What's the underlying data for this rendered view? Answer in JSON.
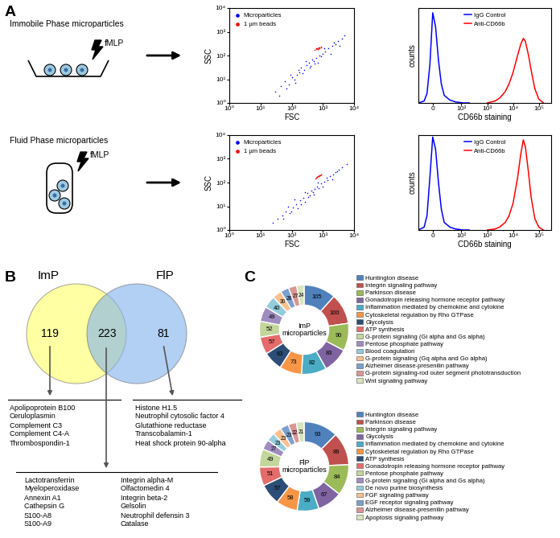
{
  "panel_labels": [
    "A",
    "B",
    "C"
  ],
  "schematic": {
    "rows": [
      {
        "title": "Immobile Phase microparticles",
        "stimulus": "fMLP"
      },
      {
        "title": "Fluid Phase microparticles",
        "stimulus": "fMLP"
      }
    ]
  },
  "chart_data": [
    {
      "type": "scatter",
      "x_label": "FSC",
      "y_label": "SSC",
      "log": true,
      "xlim": [
        1,
        10000
      ],
      "ylim": [
        1,
        10000
      ],
      "xticks": [
        {
          "value": 1,
          "label": "10⁰"
        },
        {
          "value": 10,
          "label": "10¹"
        },
        {
          "value": 100,
          "label": "10²"
        },
        {
          "value": 1000,
          "label": "10³"
        },
        {
          "value": 10000,
          "label": "10⁴"
        }
      ],
      "yticks": [
        {
          "value": 1,
          "label": "10⁰"
        },
        {
          "value": 10,
          "label": "10¹"
        },
        {
          "value": 100,
          "label": "10²"
        },
        {
          "value": 1000,
          "label": "10³"
        },
        {
          "value": 10000,
          "label": "10⁴"
        }
      ],
      "legend": "upper left",
      "series": [
        {
          "name": "Microparticles",
          "color": "#0000ff",
          "marker": "point",
          "x": [
            30,
            45,
            60,
            80,
            100,
            120,
            150,
            180,
            200,
            250,
            300,
            350,
            400,
            500,
            600,
            700,
            800,
            1000,
            1200,
            1500,
            2000,
            2500,
            3000,
            4000,
            5000,
            40,
            70,
            90,
            130,
            170,
            220,
            280,
            380,
            450,
            550,
            900,
            1100,
            1800,
            2200,
            3500
          ],
          "values": [
            3,
            5,
            8,
            6,
            12,
            10,
            15,
            20,
            30,
            25,
            40,
            50,
            35,
            60,
            80,
            50,
            100,
            120,
            150,
            200,
            250,
            300,
            400,
            500,
            700,
            2,
            4,
            15,
            7,
            25,
            18,
            60,
            30,
            70,
            45,
            90,
            200,
            120,
            350,
            250
          ]
        },
        {
          "name": "1 µm beads",
          "color": "#ff0000",
          "marker": "point",
          "x": [
            550,
            600,
            650,
            700,
            720,
            750,
            800,
            850,
            900,
            620,
            680,
            780
          ],
          "values": [
            170,
            180,
            200,
            190,
            210,
            200,
            220,
            230,
            215,
            195,
            185,
            205
          ]
        }
      ]
    },
    {
      "type": "line",
      "x_label": "CD66b staining",
      "y_label": "counts",
      "log": "x",
      "xlim": [
        -50,
        300000
      ],
      "ylim": [
        0,
        100
      ],
      "xticks": [
        0,
        {
          "value": 100,
          "label": "10²"
        },
        {
          "value": 1000,
          "label": "10³"
        },
        {
          "value": 10000,
          "label": "10⁴"
        },
        {
          "value": 100000,
          "label": "10⁵"
        }
      ],
      "tick_labels": "x",
      "legend": "upper center",
      "series": [
        {
          "name": "IgG Control",
          "color": "#0000ff",
          "x": [
            -50,
            -30,
            -20,
            -10,
            0,
            10,
            20,
            30,
            40,
            60,
            80,
            120,
            200
          ],
          "values": [
            0,
            2,
            10,
            40,
            95,
            80,
            45,
            20,
            8,
            3,
            1,
            0,
            0
          ]
        },
        {
          "name": "Anti-CD66b",
          "color": "#ff0000",
          "x": [
            1000,
            2000,
            3000,
            5000,
            7000,
            10000,
            15000,
            20000,
            25000,
            30000,
            40000,
            50000,
            70000,
            100000,
            150000
          ],
          "values": [
            0,
            2,
            5,
            12,
            20,
            32,
            50,
            62,
            68,
            65,
            50,
            35,
            15,
            4,
            0
          ]
        }
      ]
    },
    {
      "type": "scatter",
      "x_label": "FSC",
      "y_label": "SSC",
      "log": true,
      "xlim": [
        1,
        10000
      ],
      "ylim": [
        1,
        10000
      ],
      "xticks": [
        {
          "value": 1,
          "label": "10⁰"
        },
        {
          "value": 10,
          "label": "10¹"
        },
        {
          "value": 100,
          "label": "10²"
        },
        {
          "value": 1000,
          "label": "10³"
        },
        {
          "value": 10000,
          "label": "10⁴"
        }
      ],
      "yticks": [
        {
          "value": 1,
          "label": "10⁰"
        },
        {
          "value": 10,
          "label": "10¹"
        },
        {
          "value": 100,
          "label": "10²"
        },
        {
          "value": 1000,
          "label": "10³"
        },
        {
          "value": 10000,
          "label": "10⁴"
        }
      ],
      "legend": "upper left",
      "series": [
        {
          "name": "Microparticles",
          "color": "#0000ff",
          "marker": "point",
          "x": [
            25,
            35,
            50,
            65,
            85,
            110,
            140,
            160,
            190,
            230,
            270,
            320,
            380,
            420,
            480,
            560,
            650,
            750,
            900,
            1100,
            1400,
            1700,
            2100,
            2600,
            3200,
            4200,
            55,
            75,
            95,
            125,
            200,
            260,
            340,
            520,
            700,
            1000,
            1300,
            2000,
            2800,
            6000
          ],
          "values": [
            2,
            3,
            4,
            6,
            5,
            9,
            12,
            8,
            18,
            22,
            15,
            35,
            28,
            45,
            40,
            55,
            70,
            60,
            90,
            110,
            130,
            180,
            220,
            280,
            350,
            450,
            3,
            10,
            6,
            20,
            12,
            40,
            25,
            30,
            100,
            70,
            160,
            140,
            300,
            600
          ]
        },
        {
          "name": "1 µm beads",
          "color": "#ff0000",
          "marker": "point",
          "x": [
            580,
            620,
            660,
            700,
            740,
            780,
            820,
            860,
            640,
            720,
            800,
            900
          ],
          "values": [
            150,
            165,
            175,
            185,
            180,
            195,
            200,
            210,
            170,
            190,
            205,
            215
          ]
        }
      ]
    },
    {
      "type": "line",
      "x_label": "CD66b staining",
      "y_label": "counts",
      "log": "x",
      "xlim": [
        -50,
        300000
      ],
      "ylim": [
        0,
        100
      ],
      "xticks": [
        0,
        {
          "value": 100,
          "label": "10²"
        },
        {
          "value": 1000,
          "label": "10³"
        },
        {
          "value": 10000,
          "label": "10⁴"
        },
        {
          "value": 100000,
          "label": "10⁵"
        }
      ],
      "tick_labels": "x",
      "legend": "upper center",
      "series": [
        {
          "name": "IgG Control",
          "color": "#0000ff",
          "x": [
            -50,
            -30,
            -20,
            -10,
            0,
            10,
            20,
            30,
            40,
            60,
            80,
            120,
            200
          ],
          "values": [
            0,
            3,
            15,
            55,
            98,
            85,
            50,
            22,
            8,
            3,
            1,
            0,
            0
          ]
        },
        {
          "name": "Anti-CD66b",
          "color": "#ff0000",
          "x": [
            1000,
            2000,
            3000,
            5000,
            7000,
            10000,
            15000,
            20000,
            25000,
            30000,
            40000,
            50000,
            70000,
            100000,
            150000
          ],
          "values": [
            0,
            1,
            3,
            8,
            15,
            28,
            55,
            80,
            95,
            88,
            60,
            35,
            12,
            3,
            0
          ]
        }
      ]
    },
    {
      "type": "pie",
      "title": "ImP\nmicroparticles",
      "data_labels": true,
      "legend": "right",
      "categories": [
        "Huntington disease",
        "Integrin signaling pathway",
        "Parkinson disease",
        "Gonadotropin releasing hormone receptor pathway",
        "Inflammation mediated by chemokine and cytokine",
        "Cytoskeletal regulation by Rho GTPase",
        "Glycolysis",
        "ATP synthesis",
        "G-protein signaling (Gi alpha and Gs alpha)",
        "Pentose phosphate pathway",
        "Blood coagulation",
        "G-protein signaling (Gq alpha and Go alpha)",
        "Alzheimer disease-presenilin pathway",
        "G-protein signaling-rod outer segment phototransduction",
        "Wnt signaling pathway"
      ],
      "values": [
        105,
        100,
        90,
        83,
        82,
        73,
        63,
        57,
        52,
        49,
        40,
        30,
        28,
        27,
        24
      ],
      "colors": [
        "#4f81bd",
        "#c0504d",
        "#9bbb59",
        "#8064a2",
        "#4bacc6",
        "#f79646",
        "#2c4d75",
        "#e46c6a",
        "#c3d69b",
        "#9f8cc0",
        "#93cddd",
        "#fac090",
        "#7ba0cd",
        "#d99694",
        "#d7e4bd"
      ]
    },
    {
      "type": "pie",
      "title": "FlP\nmicroparticles",
      "data_labels": true,
      "legend": "right",
      "categories": [
        "Huntington disease",
        "Parkinson disease",
        "Integrin signaling pathway",
        "Glycolysis",
        "Inflammation mediated by chemokine and cytokine",
        "Cytoskeletal regulation by Rho GTPase",
        "ATP synthesis",
        "Gonadotropin releasing hormone receptor pathway",
        "Pentose phosphate pathway",
        "G-protein signaling (Gi alpha and Gs alpha)",
        "De novo purine biosynthesis",
        "FGF signaling pathway",
        "EGF receptor signaling pathway",
        "Alzheimer disease-presenilin pathway",
        "Apoptosis signaling pathway"
      ],
      "values": [
        93,
        89,
        84,
        67,
        59,
        58,
        57,
        51,
        49,
        27,
        23,
        23,
        23,
        22,
        21
      ],
      "colors": [
        "#4f81bd",
        "#c0504d",
        "#9bbb59",
        "#8064a2",
        "#4bacc6",
        "#f79646",
        "#2c4d75",
        "#e46c6a",
        "#c3d69b",
        "#9f8cc0",
        "#93cddd",
        "#fac090",
        "#7ba0cd",
        "#d99694",
        "#d7e4bd"
      ]
    }
  ],
  "venn": {
    "sets": [
      {
        "name": "ImP",
        "color": "#ffff66",
        "only": 119,
        "examples": [
          "Apolipoprotein B100",
          "Ceruloplasmin",
          "Complement C3",
          "Complement C4-A",
          "Thrombospondin-1"
        ]
      },
      {
        "name": "FlP",
        "color": "#7fb2ee",
        "only": 81,
        "examples": [
          "Histone H1.5",
          "Neutrophil cytosolic factor 4",
          "Glutathione reductase",
          "Transcobalamin-1",
          "Heat shock protein 90-alpha"
        ]
      }
    ],
    "shared": {
      "count": 223,
      "examples": [
        [
          "Lactotransferrin",
          "Myeloperoxidase",
          "Annexin A1",
          "Cathepsin G",
          "S100-A8",
          "S100-A9"
        ],
        [
          "Integrin alpha-M",
          "Olfactomedin 4",
          "Integrin beta-2",
          "Gelsolin",
          "Neutrophil defensin 3",
          "Catalase"
        ]
      ]
    }
  }
}
